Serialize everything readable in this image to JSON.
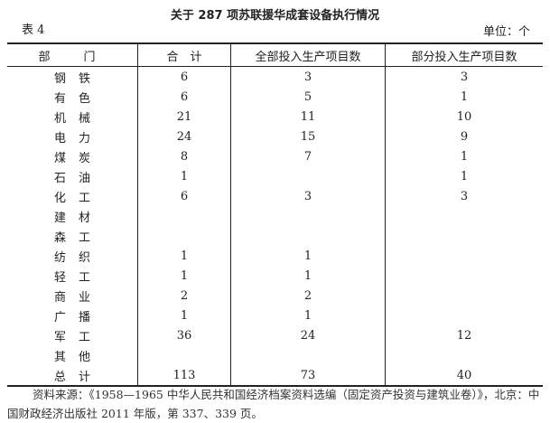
{
  "title": "关于 287 项苏联援华成套设备执行情况",
  "table_no": "表 4",
  "unit": "单位：个",
  "headers": [
    "部　门",
    "合　计",
    "全部投入生产项目数",
    "部分投入生产项目数"
  ],
  "rows": [
    [
      "钢铁",
      "6",
      "3",
      "3"
    ],
    [
      "有色",
      "6",
      "5",
      "1"
    ],
    [
      "机械",
      "21",
      "11",
      "10"
    ],
    [
      "电力",
      "24",
      "15",
      "9"
    ],
    [
      "煤炭",
      "8",
      "7",
      "1"
    ],
    [
      "石油",
      "1",
      "",
      "1"
    ],
    [
      "化工",
      "6",
      "3",
      "3"
    ],
    [
      "建材",
      "",
      "",
      ""
    ],
    [
      "森工",
      "",
      "",
      ""
    ],
    [
      "纺织",
      "1",
      "1",
      ""
    ],
    [
      "轻工",
      "1",
      "1",
      ""
    ],
    [
      "商业",
      "2",
      "2",
      ""
    ],
    [
      "广播",
      "1",
      "1",
      ""
    ],
    [
      "军工",
      "36",
      "24",
      "12"
    ],
    [
      "其他",
      "",
      "",
      ""
    ],
    [
      "总计",
      "113",
      "73",
      "40"
    ]
  ],
  "source": "资料来源：《1958—1965 中华人民共和国经济档案资料选编（固定资产投资与建筑业卷）》，北京：中国财政经济出版社 2011 年版，第 337、339 页。"
}
